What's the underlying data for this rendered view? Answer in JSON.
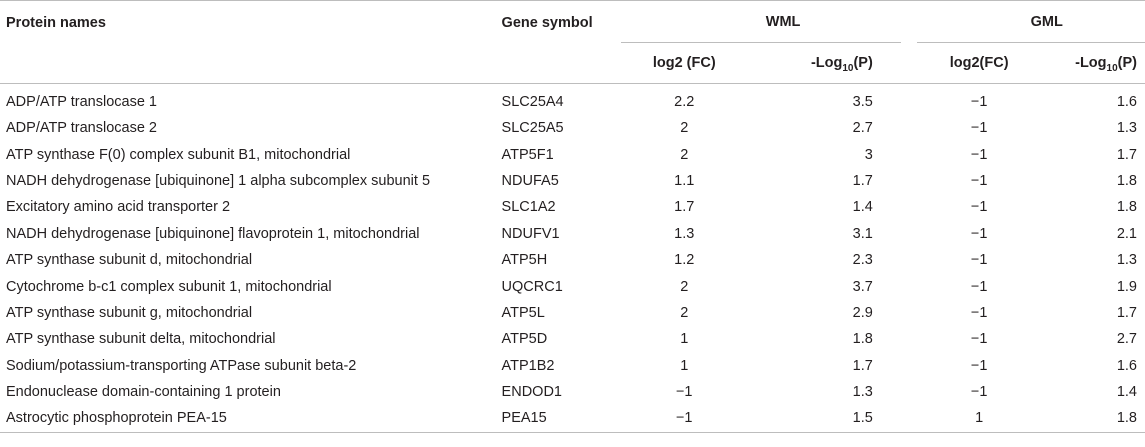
{
  "table": {
    "headers": {
      "protein_names": "Protein names",
      "gene_symbol": "Gene symbol",
      "wml": "WML",
      "gml": "GML",
      "wml_log2fc": "log2 (FC)",
      "wml_neglog_prefix": "-Log",
      "wml_neglog_sub": "10",
      "wml_neglog_suffix": "(P)",
      "gml_log2fc": "log2(FC)",
      "gml_neglog_prefix": "-Log",
      "gml_neglog_sub": "10",
      "gml_neglog_suffix": "(P)"
    },
    "rows": [
      {
        "protein": "ADP/ATP translocase 1",
        "gene": "SLC25A4",
        "wml_fc": "2.2",
        "wml_p": "3.5",
        "gml_fc": "−1",
        "gml_p": "1.6"
      },
      {
        "protein": "ADP/ATP translocase 2",
        "gene": "SLC25A5",
        "wml_fc": "2",
        "wml_p": "2.7",
        "gml_fc": "−1",
        "gml_p": "1.3"
      },
      {
        "protein": "ATP synthase F(0) complex subunit B1, mitochondrial",
        "gene": "ATP5F1",
        "wml_fc": "2",
        "wml_p": "3",
        "gml_fc": "−1",
        "gml_p": "1.7"
      },
      {
        "protein": "NADH dehydrogenase [ubiquinone] 1 alpha subcomplex subunit 5",
        "gene": "NDUFA5",
        "wml_fc": "1.1",
        "wml_p": "1.7",
        "gml_fc": "−1",
        "gml_p": "1.8"
      },
      {
        "protein": "Excitatory amino acid transporter 2",
        "gene": "SLC1A2",
        "wml_fc": "1.7",
        "wml_p": "1.4",
        "gml_fc": "−1",
        "gml_p": "1.8"
      },
      {
        "protein": "NADH dehydrogenase [ubiquinone] flavoprotein 1, mitochondrial",
        "gene": "NDUFV1",
        "wml_fc": "1.3",
        "wml_p": "3.1",
        "gml_fc": "−1",
        "gml_p": "2.1"
      },
      {
        "protein": "ATP synthase subunit d, mitochondrial",
        "gene": "ATP5H",
        "wml_fc": "1.2",
        "wml_p": "2.3",
        "gml_fc": "−1",
        "gml_p": "1.3"
      },
      {
        "protein": "Cytochrome b-c1 complex subunit 1, mitochondrial",
        "gene": "UQCRC1",
        "wml_fc": "2",
        "wml_p": "3.7",
        "gml_fc": "−1",
        "gml_p": "1.9"
      },
      {
        "protein": "ATP synthase subunit g, mitochondrial",
        "gene": "ATP5L",
        "wml_fc": "2",
        "wml_p": "2.9",
        "gml_fc": "−1",
        "gml_p": "1.7"
      },
      {
        "protein": "ATP synthase subunit delta, mitochondrial",
        "gene": "ATP5D",
        "wml_fc": "1",
        "wml_p": "1.8",
        "gml_fc": "−1",
        "gml_p": "2.7"
      },
      {
        "protein": "Sodium/potassium-transporting ATPase subunit beta-2",
        "gene": "ATP1B2",
        "wml_fc": "1",
        "wml_p": "1.7",
        "gml_fc": "−1",
        "gml_p": "1.6"
      },
      {
        "protein": "Endonuclease domain-containing 1 protein",
        "gene": "ENDOD1",
        "wml_fc": "−1",
        "wml_p": "1.3",
        "gml_fc": "−1",
        "gml_p": "1.4"
      },
      {
        "protein": "Astrocytic phosphoprotein PEA-15",
        "gene": "PEA15",
        "wml_fc": "−1",
        "wml_p": "1.5",
        "gml_fc": "1",
        "gml_p": "1.8"
      }
    ]
  }
}
